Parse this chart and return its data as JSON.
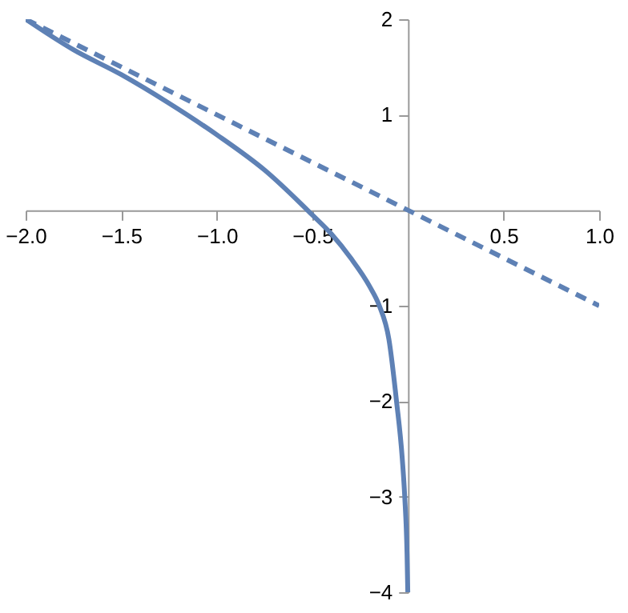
{
  "chart_data": {
    "type": "line",
    "xlim": [
      -2,
      1
    ],
    "ylim": [
      -4,
      2
    ],
    "xticks": [
      {
        "value": -2,
        "label": "−2.0"
      },
      {
        "value": -1.5,
        "label": "−1.5"
      },
      {
        "value": -1,
        "label": "−1.0"
      },
      {
        "value": -0.5,
        "label": "−0.5"
      },
      {
        "value": 0.5,
        "label": "0.5"
      },
      {
        "value": 1,
        "label": "1.0"
      }
    ],
    "yticks": [
      {
        "value": -4,
        "label": "−4"
      },
      {
        "value": -3,
        "label": "−3"
      },
      {
        "value": -2,
        "label": "−2"
      },
      {
        "value": -1,
        "label": "−1"
      },
      1,
      2
    ],
    "grid": false,
    "marker": "none",
    "series": [
      {
        "color": "#5e81b5",
        "line_style": "solid",
        "x": [
          -2,
          -1.75,
          -1.5,
          -1.25,
          -1,
          -0.75,
          -0.5,
          -0.4,
          -0.3,
          -0.2,
          -0.15,
          -0.1,
          -0.06,
          -0.03,
          -0.017,
          -0.005,
          -0.001
        ],
        "values": [
          2,
          1.68,
          1.42,
          1.12,
          0.79,
          0.42,
          -0.05,
          -0.25,
          -0.5,
          -0.8,
          -1,
          -1.35,
          -2,
          -2.6,
          -3,
          -3.6,
          -4
        ]
      },
      {
        "color": "#5e81b5",
        "line_style": "dashed",
        "x": [
          -2,
          1
        ],
        "values": [
          2,
          -1
        ]
      }
    ]
  }
}
